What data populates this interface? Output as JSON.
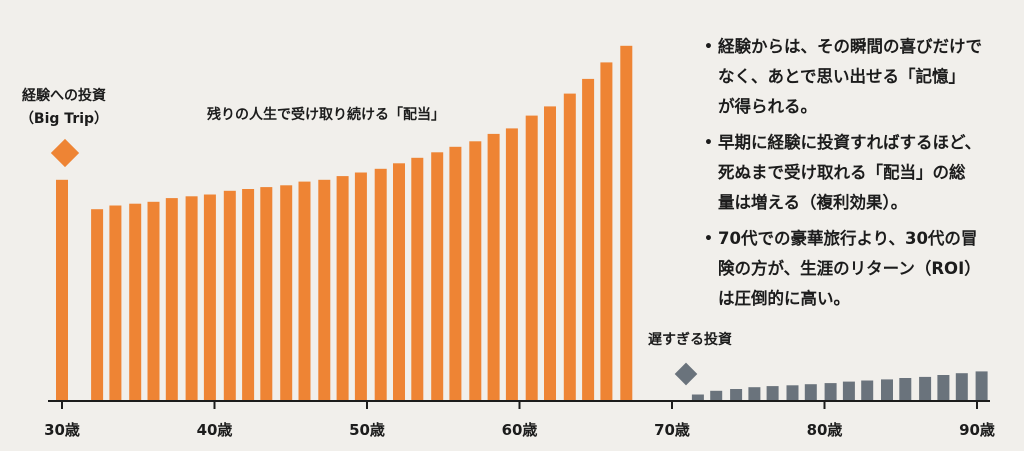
{
  "chart_data": {
    "type": "bar",
    "x_ticks": [
      "30歳",
      "40歳",
      "50歳",
      "60歳",
      "70歳",
      "80歳",
      "90歳"
    ],
    "x_tick_values": [
      30,
      40,
      50,
      60,
      70,
      80,
      90
    ],
    "xlim": [
      29,
      91
    ],
    "ylim": [
      0,
      100
    ],
    "grid": false,
    "series": [
      {
        "key": "big_trip",
        "color": "#ee8434",
        "points": [
          {
            "x": 30,
            "y": 60
          }
        ]
      },
      {
        "key": "dividends",
        "color": "#ee8434",
        "points": [
          {
            "x": 32.3,
            "y": 52
          },
          {
            "x": 33.5,
            "y": 53
          },
          {
            "x": 34.8,
            "y": 53.5
          },
          {
            "x": 36.0,
            "y": 54
          },
          {
            "x": 37.2,
            "y": 55
          },
          {
            "x": 38.5,
            "y": 55.5
          },
          {
            "x": 39.7,
            "y": 56
          },
          {
            "x": 41.0,
            "y": 57
          },
          {
            "x": 42.2,
            "y": 57.5
          },
          {
            "x": 43.4,
            "y": 58
          },
          {
            "x": 44.7,
            "y": 58.5
          },
          {
            "x": 45.9,
            "y": 59.5
          },
          {
            "x": 47.2,
            "y": 60
          },
          {
            "x": 48.4,
            "y": 61
          },
          {
            "x": 49.6,
            "y": 62
          },
          {
            "x": 50.9,
            "y": 63
          },
          {
            "x": 52.1,
            "y": 64.5
          },
          {
            "x": 53.3,
            "y": 66
          },
          {
            "x": 54.6,
            "y": 67.5
          },
          {
            "x": 55.8,
            "y": 69
          },
          {
            "x": 57.1,
            "y": 70.5
          },
          {
            "x": 58.3,
            "y": 72.5
          },
          {
            "x": 59.5,
            "y": 74
          },
          {
            "x": 60.8,
            "y": 77.5
          },
          {
            "x": 62.0,
            "y": 80
          },
          {
            "x": 63.3,
            "y": 83.5
          },
          {
            "x": 64.5,
            "y": 87.5
          },
          {
            "x": 65.7,
            "y": 92
          },
          {
            "x": 67.0,
            "y": 96.5
          }
        ]
      },
      {
        "key": "late",
        "color": "#6a737c",
        "points": [
          {
            "x": 71.7,
            "y": 1.5
          },
          {
            "x": 72.9,
            "y": 2.5
          },
          {
            "x": 74.2,
            "y": 3
          },
          {
            "x": 75.4,
            "y": 3.5
          },
          {
            "x": 76.6,
            "y": 3.8
          },
          {
            "x": 77.9,
            "y": 4
          },
          {
            "x": 79.1,
            "y": 4.3
          },
          {
            "x": 80.4,
            "y": 4.6
          },
          {
            "x": 81.6,
            "y": 5
          },
          {
            "x": 82.8,
            "y": 5.3
          },
          {
            "x": 84.1,
            "y": 5.6
          },
          {
            "x": 85.3,
            "y": 6
          },
          {
            "x": 86.6,
            "y": 6.3
          },
          {
            "x": 87.8,
            "y": 6.8
          },
          {
            "x": 89.0,
            "y": 7.3
          },
          {
            "x": 90.3,
            "y": 7.8
          }
        ]
      }
    ],
    "annotations": {
      "big_trip_line1": "経験への投資",
      "big_trip_line2": "（Big Trip）",
      "dividends_label": "残りの人生で受け取り続ける「配当」",
      "late_label": "遅すぎる投資"
    }
  },
  "notes": [
    [
      "経験からは、その瞬間の喜びだけで",
      "なく、あとで思い出せる「記憶」",
      "が得られる。"
    ],
    [
      "早期に経験に投資すればするほど、",
      "死ぬまで受け取れる「配当」の総",
      "量は増える（複利効果）。"
    ],
    [
      "70代での豪華旅行より、30代の冒",
      "険の方が、生涯のリターン（ROI）",
      "は圧倒的に高い。"
    ]
  ]
}
